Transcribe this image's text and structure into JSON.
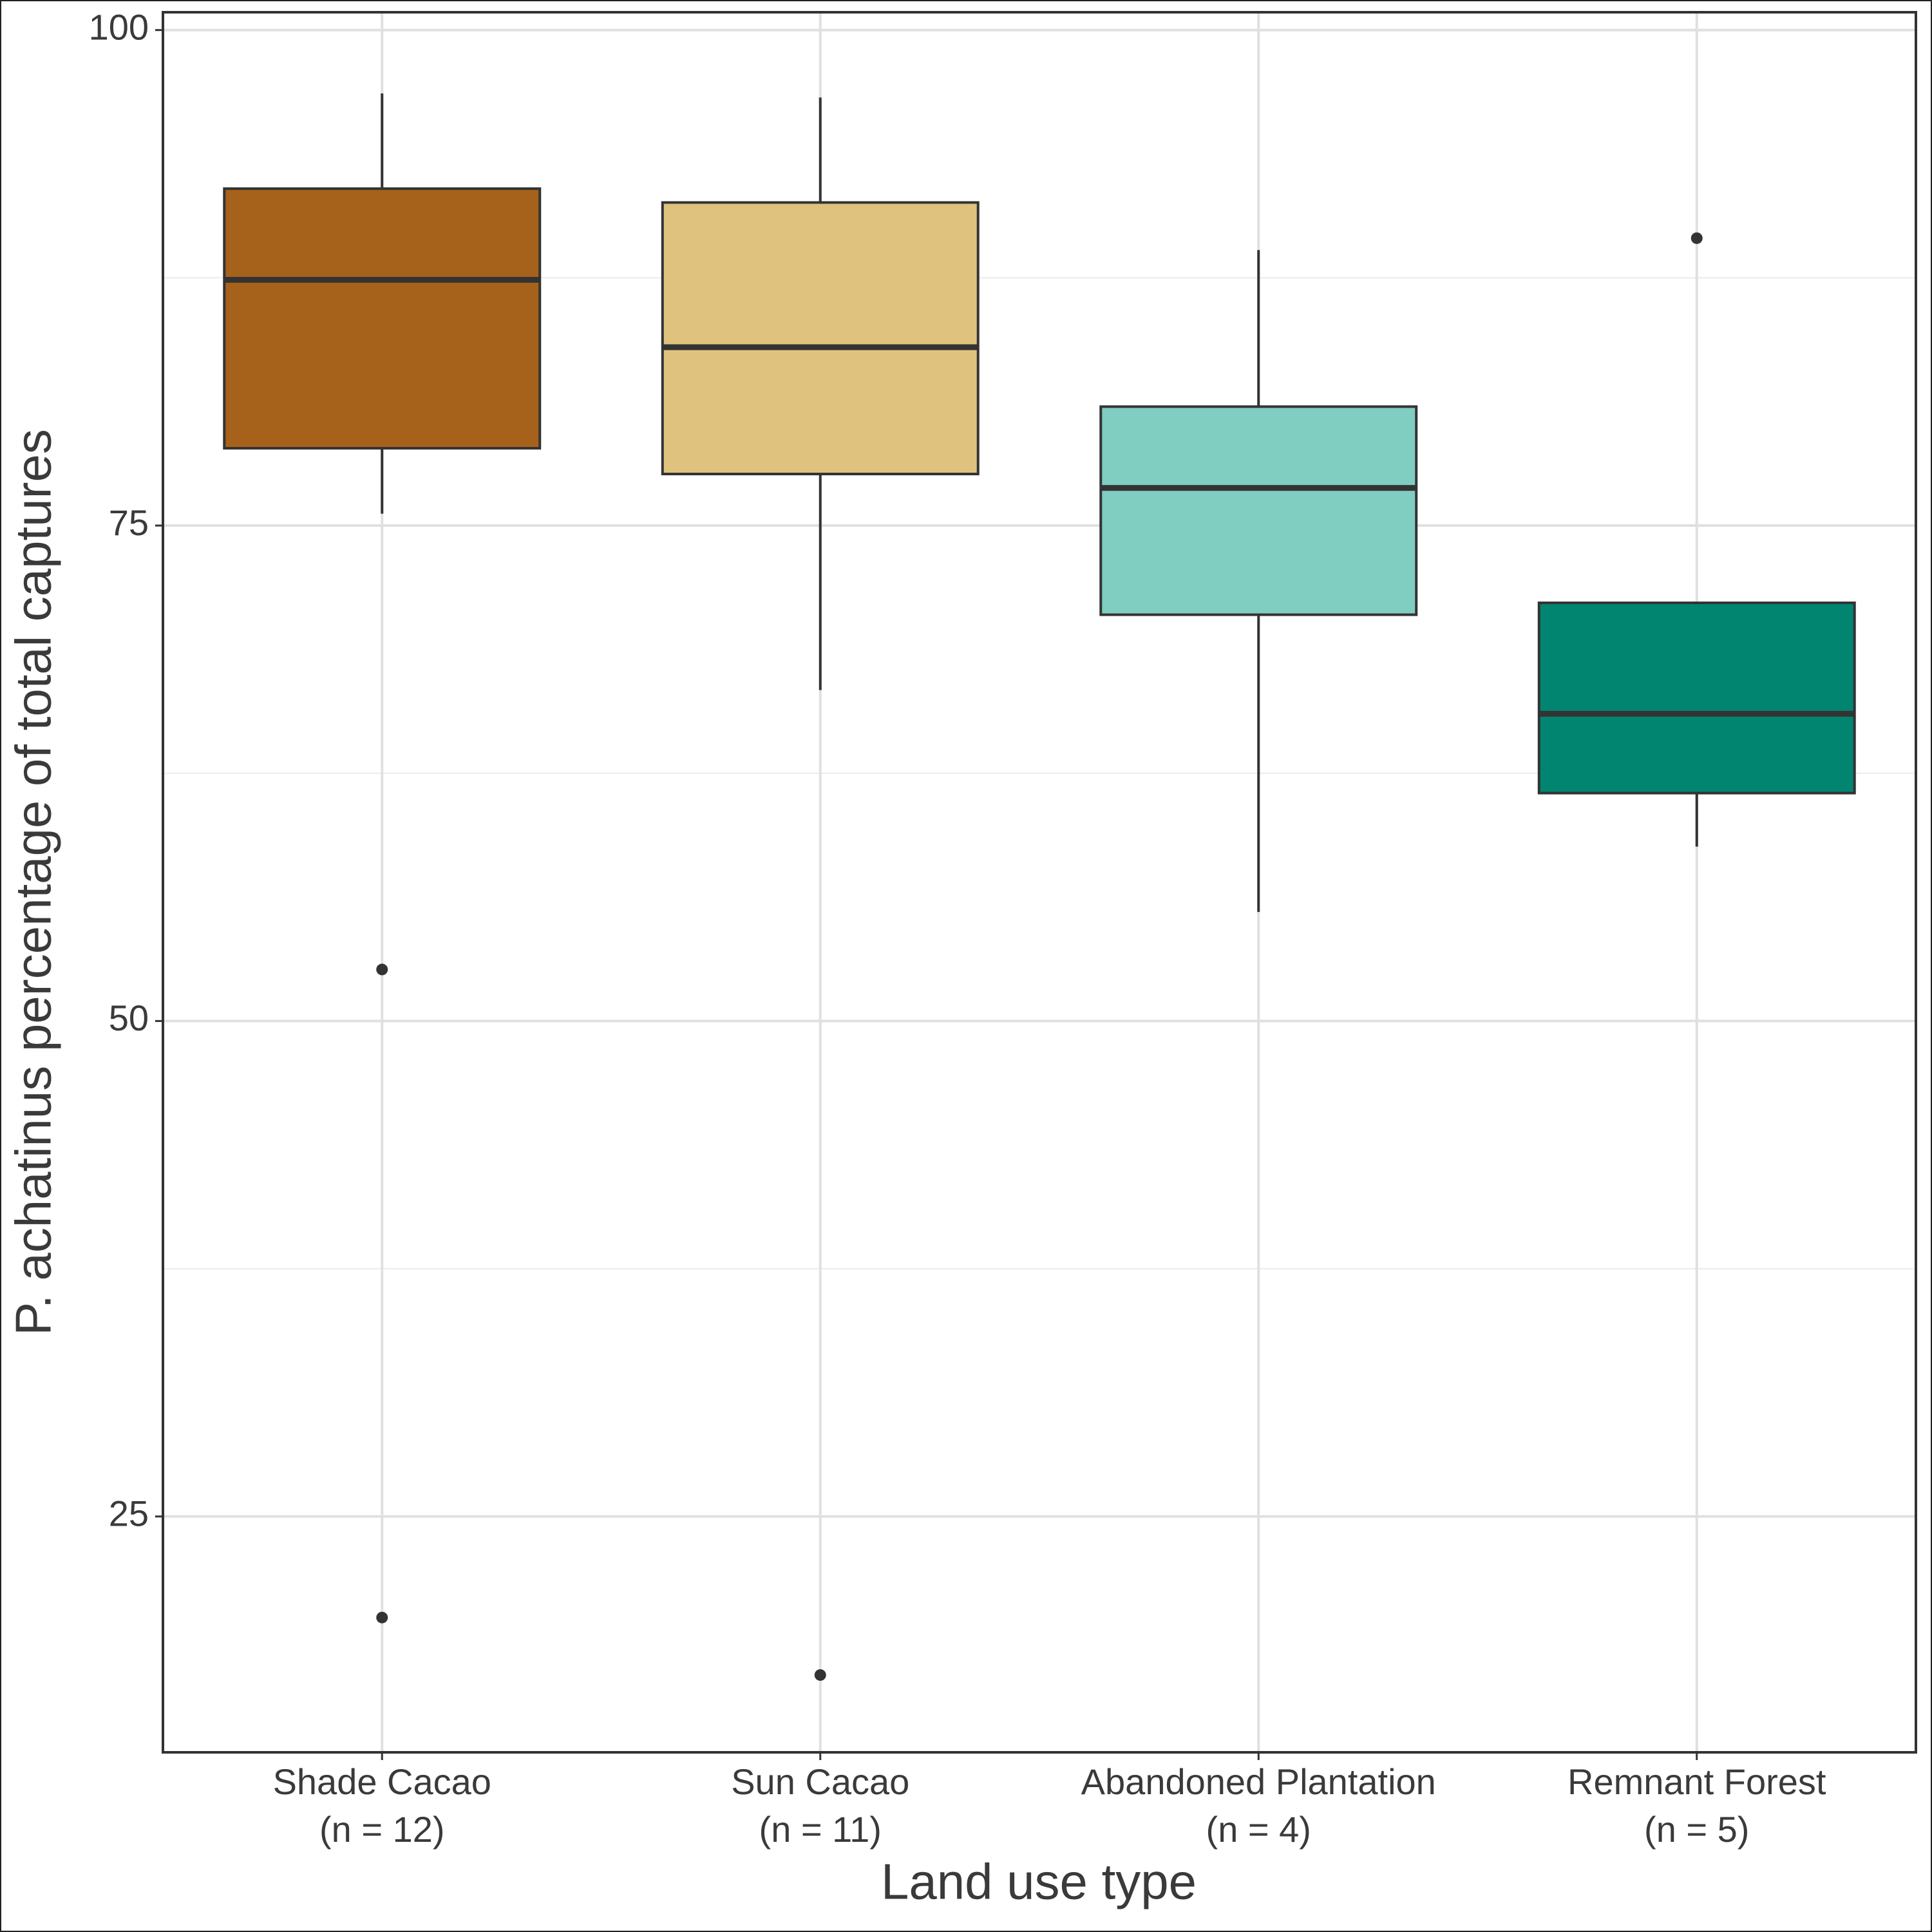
{
  "chart_data": {
    "type": "box",
    "x_label": "Land use type",
    "y_label": "P. achatinus percentage of total captures",
    "categories": [
      "Shade Cacao",
      "Sun Cacao",
      "Abandoned Plantation",
      "Remnant Forest"
    ],
    "n_labels": [
      "(n = 12)",
      "(n = 11)",
      "(n = 4)",
      "(n = 5)"
    ],
    "colors": [
      "#a6611a",
      "#dfc27d",
      "#80cdc1",
      "#018571"
    ],
    "boxes": [
      {
        "whisker_low": 75.6,
        "q1": 78.9,
        "median": 87.4,
        "q3": 92.0,
        "whisker_high": 96.8,
        "outliers": [
          52.6,
          19.9
        ]
      },
      {
        "whisker_low": 66.7,
        "q1": 77.6,
        "median": 84.0,
        "q3": 91.3,
        "whisker_high": 96.6,
        "outliers": [
          17.0
        ]
      },
      {
        "whisker_low": 55.5,
        "q1": 70.5,
        "median": 76.9,
        "q3": 81.0,
        "whisker_high": 88.9,
        "outliers": []
      },
      {
        "whisker_low": 58.8,
        "q1": 61.5,
        "median": 65.5,
        "q3": 71.1,
        "whisker_high": 71.1,
        "outliers": [
          89.5
        ]
      }
    ],
    "ylim": [
      13.1,
      100.9
    ],
    "yticks": [
      25,
      50,
      75,
      100
    ],
    "minor_yticks": [
      37.5,
      62.5,
      87.5
    ],
    "grid": true
  }
}
